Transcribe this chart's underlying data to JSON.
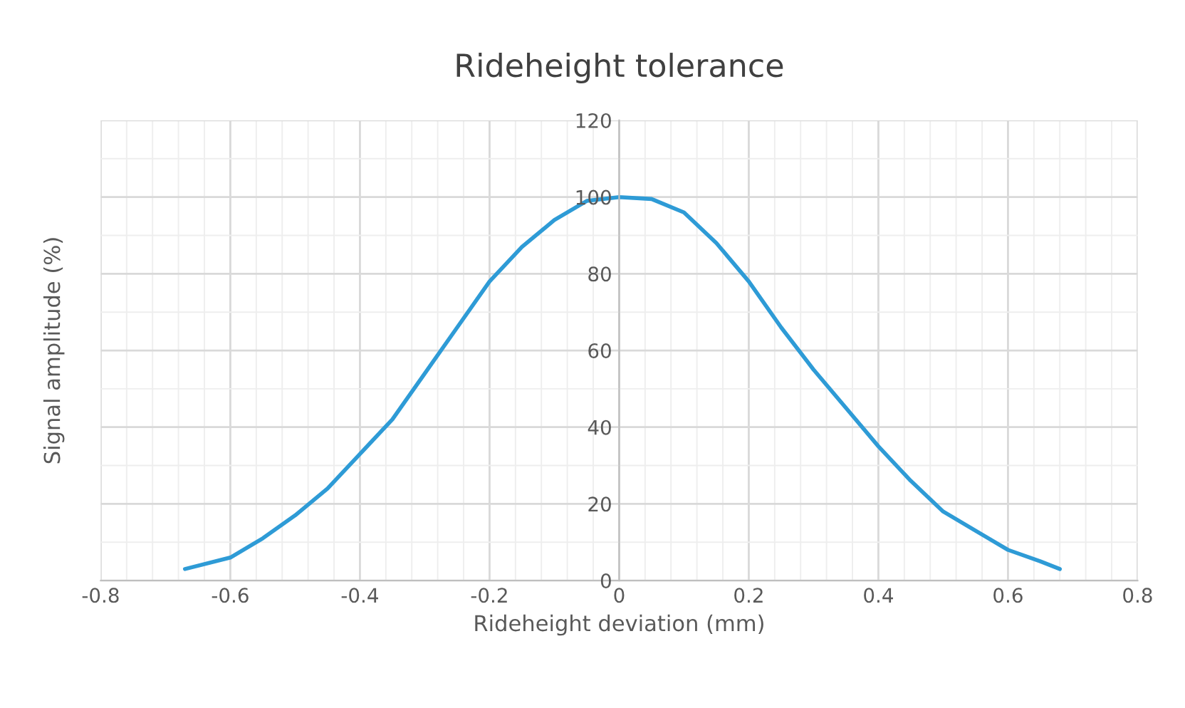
{
  "chart_data": {
    "type": "line",
    "title": "Rideheight tolerance",
    "xlabel": "Rideheight deviation (mm)",
    "ylabel": "Signal amplitude (%)",
    "x": [
      -0.67,
      -0.6,
      -0.55,
      -0.5,
      -0.45,
      -0.4,
      -0.35,
      -0.3,
      -0.25,
      -0.2,
      -0.15,
      -0.1,
      -0.05,
      0,
      0.05,
      0.1,
      0.15,
      0.2,
      0.25,
      0.3,
      0.35,
      0.4,
      0.45,
      0.5,
      0.55,
      0.6,
      0.65,
      0.68
    ],
    "series": [
      {
        "color": "#2e9bd6",
        "values": [
          3,
          6,
          11,
          17,
          24,
          33,
          42,
          54,
          66,
          78,
          87,
          94,
          99,
          100,
          99.5,
          96,
          88,
          78,
          66,
          55,
          45,
          35,
          26,
          18,
          13,
          8,
          5,
          3
        ]
      }
    ],
    "xlim": [
      -0.8,
      0.8
    ],
    "xticks": [
      {
        "value": -0.8,
        "label": "-0.8"
      },
      {
        "value": -0.6,
        "label": "-0.6"
      },
      {
        "value": -0.4,
        "label": "-0.4"
      },
      {
        "value": -0.2,
        "label": "-0.2"
      },
      0,
      0.2,
      0.4,
      0.6,
      0.8
    ],
    "ylim": [
      0,
      120
    ],
    "yticks": [
      0,
      20,
      40,
      60,
      80,
      100,
      120
    ],
    "grid": true,
    "marker": "none",
    "line_style": "solid"
  }
}
